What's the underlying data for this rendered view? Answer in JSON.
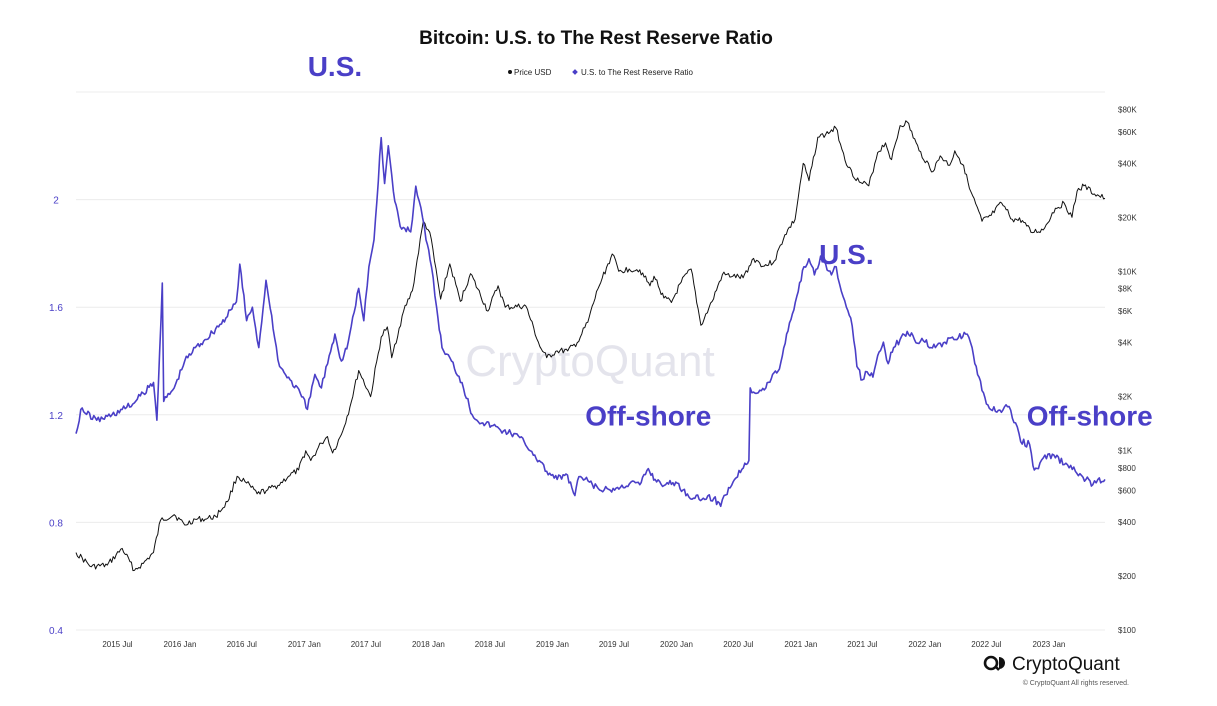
{
  "chart_data": {
    "type": "line",
    "title": "Bitcoin: U.S. to The Rest Reserve Ratio",
    "legend": [
      {
        "label": "Price USD",
        "color": "#111111"
      },
      {
        "label": "U.S. to The Rest Reserve Ratio",
        "color": "#4a3fc7"
      }
    ],
    "legend_position": "top-center",
    "grid": true,
    "x_range": [
      "2015-03-01",
      "2023-06-15"
    ],
    "x_ticks": [
      "2015 Jul",
      "2016 Jan",
      "2016 Jul",
      "2017 Jan",
      "2017 Jul",
      "2018 Jan",
      "2018 Jul",
      "2019 Jan",
      "2019 Jul",
      "2020 Jan",
      "2020 Jul",
      "2021 Jan",
      "2021 Jul",
      "2022 Jan",
      "2022 Jul",
      "2023 Jan"
    ],
    "y_left": {
      "scale": "linear",
      "range": [
        0.4,
        2.4
      ],
      "ticks": [
        "2",
        "1.6",
        "1.2",
        "0.8",
        "0.4"
      ]
    },
    "y_right": {
      "scale": "log",
      "range": [
        100,
        100000
      ],
      "ticks": [
        "$80K",
        "$60K",
        "$40K",
        "$20K",
        "$10K",
        "$8K",
        "$6K",
        "$4K",
        "$2K",
        "$1K",
        "$800",
        "$600",
        "$400",
        "$200",
        "$100"
      ]
    },
    "series": [
      {
        "name": "Price USD",
        "axis": "right",
        "color": "#111111",
        "points": [
          [
            "2015-03-01",
            270
          ],
          [
            "2015-04-15",
            225
          ],
          [
            "2015-06-01",
            230
          ],
          [
            "2015-07-15",
            285
          ],
          [
            "2015-08-20",
            215
          ],
          [
            "2015-09-15",
            235
          ],
          [
            "2015-10-15",
            270
          ],
          [
            "2015-11-05",
            410
          ],
          [
            "2015-12-15",
            440
          ],
          [
            "2016-01-15",
            385
          ],
          [
            "2016-02-15",
            415
          ],
          [
            "2016-03-15",
            415
          ],
          [
            "2016-04-15",
            430
          ],
          [
            "2016-05-20",
            520
          ],
          [
            "2016-06-17",
            720
          ],
          [
            "2016-07-15",
            660
          ],
          [
            "2016-08-15",
            575
          ],
          [
            "2016-09-15",
            605
          ],
          [
            "2016-10-15",
            640
          ],
          [
            "2016-11-15",
            720
          ],
          [
            "2016-12-15",
            780
          ],
          [
            "2017-01-05",
            1000
          ],
          [
            "2017-01-20",
            880
          ],
          [
            "2017-02-20",
            1100
          ],
          [
            "2017-03-10",
            1200
          ],
          [
            "2017-03-25",
            970
          ],
          [
            "2017-04-20",
            1230
          ],
          [
            "2017-05-15",
            1750
          ],
          [
            "2017-06-10",
            2800
          ],
          [
            "2017-07-15",
            2000
          ],
          [
            "2017-08-15",
            4300
          ],
          [
            "2017-09-02",
            4900
          ],
          [
            "2017-09-15",
            3300
          ],
          [
            "2017-10-20",
            6000
          ],
          [
            "2017-11-15",
            7800
          ],
          [
            "2017-12-17",
            19000
          ],
          [
            "2018-01-05",
            16500
          ],
          [
            "2018-02-06",
            7000
          ],
          [
            "2018-03-05",
            11000
          ],
          [
            "2018-04-05",
            6800
          ],
          [
            "2018-05-05",
            9700
          ],
          [
            "2018-06-25",
            6000
          ],
          [
            "2018-07-25",
            8300
          ],
          [
            "2018-08-15",
            6300
          ],
          [
            "2018-10-15",
            6400
          ],
          [
            "2018-11-25",
            3800
          ],
          [
            "2018-12-15",
            3300
          ],
          [
            "2019-01-15",
            3600
          ],
          [
            "2019-02-15",
            3600
          ],
          [
            "2019-03-15",
            4000
          ],
          [
            "2019-04-15",
            5200
          ],
          [
            "2019-05-15",
            8000
          ],
          [
            "2019-06-26",
            12500
          ],
          [
            "2019-07-15",
            10000
          ],
          [
            "2019-08-15",
            10300
          ],
          [
            "2019-09-15",
            10200
          ],
          [
            "2019-10-15",
            8300
          ],
          [
            "2019-10-27",
            9400
          ],
          [
            "2019-11-25",
            7100
          ],
          [
            "2019-12-17",
            6700
          ],
          [
            "2020-01-15",
            8700
          ],
          [
            "2020-02-13",
            10300
          ],
          [
            "2020-03-13",
            5000
          ],
          [
            "2020-04-15",
            6800
          ],
          [
            "2020-05-15",
            9600
          ],
          [
            "2020-06-15",
            9400
          ],
          [
            "2020-07-15",
            9200
          ],
          [
            "2020-08-15",
            11800
          ],
          [
            "2020-09-15",
            10700
          ],
          [
            "2020-10-15",
            11400
          ],
          [
            "2020-11-15",
            16000
          ],
          [
            "2020-12-15",
            19500
          ],
          [
            "2021-01-08",
            40000
          ],
          [
            "2021-01-25",
            32000
          ],
          [
            "2021-02-20",
            56000
          ],
          [
            "2021-03-15",
            58000
          ],
          [
            "2021-04-14",
            63000
          ],
          [
            "2021-05-20",
            38000
          ],
          [
            "2021-06-22",
            31500
          ],
          [
            "2021-07-20",
            30000
          ],
          [
            "2021-08-15",
            46000
          ],
          [
            "2021-09-07",
            52000
          ],
          [
            "2021-09-25",
            42000
          ],
          [
            "2021-10-20",
            65000
          ],
          [
            "2021-11-10",
            68000
          ],
          [
            "2021-12-15",
            47000
          ],
          [
            "2022-01-25",
            36000
          ],
          [
            "2022-02-15",
            44000
          ],
          [
            "2022-03-15",
            39000
          ],
          [
            "2022-03-30",
            47000
          ],
          [
            "2022-04-25",
            39000
          ],
          [
            "2022-05-12",
            29000
          ],
          [
            "2022-06-18",
            19000
          ],
          [
            "2022-07-15",
            20500
          ],
          [
            "2022-08-15",
            24000
          ],
          [
            "2022-09-15",
            19500
          ],
          [
            "2022-10-15",
            19200
          ],
          [
            "2022-11-09",
            16500
          ],
          [
            "2022-12-15",
            17000
          ],
          [
            "2023-01-20",
            22500
          ],
          [
            "2023-02-15",
            24000
          ],
          [
            "2023-03-10",
            20000
          ],
          [
            "2023-03-25",
            28000
          ],
          [
            "2023-04-14",
            30000
          ],
          [
            "2023-05-15",
            27000
          ],
          [
            "2023-06-15",
            25500
          ]
        ]
      },
      {
        "name": "U.S. to The Rest Reserve Ratio",
        "axis": "left",
        "color": "#4a3fc7",
        "points": [
          [
            "2015-03-01",
            1.13
          ],
          [
            "2015-03-15",
            1.22
          ],
          [
            "2015-05-01",
            1.18
          ],
          [
            "2015-06-15",
            1.2
          ],
          [
            "2015-07-15",
            1.22
          ],
          [
            "2015-08-15",
            1.24
          ],
          [
            "2015-09-15",
            1.28
          ],
          [
            "2015-10-15",
            1.32
          ],
          [
            "2015-10-25",
            1.18
          ],
          [
            "2015-11-10",
            1.69
          ],
          [
            "2015-11-14",
            1.25
          ],
          [
            "2015-12-15",
            1.3
          ],
          [
            "2016-01-15",
            1.4
          ],
          [
            "2016-02-15",
            1.45
          ],
          [
            "2016-03-15",
            1.48
          ],
          [
            "2016-04-15",
            1.52
          ],
          [
            "2016-05-15",
            1.56
          ],
          [
            "2016-06-15",
            1.62
          ],
          [
            "2016-06-25",
            1.76
          ],
          [
            "2016-07-15",
            1.55
          ],
          [
            "2016-08-01",
            1.6
          ],
          [
            "2016-08-20",
            1.45
          ],
          [
            "2016-09-10",
            1.7
          ],
          [
            "2016-10-01",
            1.52
          ],
          [
            "2016-10-20",
            1.38
          ],
          [
            "2016-11-20",
            1.33
          ],
          [
            "2016-12-20",
            1.28
          ],
          [
            "2017-01-10",
            1.22
          ],
          [
            "2017-02-01",
            1.35
          ],
          [
            "2017-02-20",
            1.3
          ],
          [
            "2017-03-15",
            1.42
          ],
          [
            "2017-04-01",
            1.5
          ],
          [
            "2017-04-20",
            1.4
          ],
          [
            "2017-05-10",
            1.47
          ],
          [
            "2017-06-10",
            1.67
          ],
          [
            "2017-06-25",
            1.55
          ],
          [
            "2017-07-10",
            1.75
          ],
          [
            "2017-07-25",
            1.85
          ],
          [
            "2017-08-15",
            2.23
          ],
          [
            "2017-08-25",
            2.06
          ],
          [
            "2017-09-05",
            2.2
          ],
          [
            "2017-09-20",
            2.03
          ],
          [
            "2017-10-10",
            1.9
          ],
          [
            "2017-11-10",
            1.88
          ],
          [
            "2017-11-25",
            2.05
          ],
          [
            "2017-12-10",
            1.97
          ],
          [
            "2017-12-25",
            1.85
          ],
          [
            "2018-01-10",
            1.75
          ],
          [
            "2018-01-25",
            1.6
          ],
          [
            "2018-02-10",
            1.45
          ],
          [
            "2018-03-10",
            1.4
          ],
          [
            "2018-04-10",
            1.32
          ],
          [
            "2018-05-10",
            1.2
          ],
          [
            "2018-06-10",
            1.17
          ],
          [
            "2018-07-10",
            1.16
          ],
          [
            "2018-08-10",
            1.14
          ],
          [
            "2018-09-10",
            1.13
          ],
          [
            "2018-10-10",
            1.1
          ],
          [
            "2018-11-10",
            1.05
          ],
          [
            "2018-12-15",
            0.99
          ],
          [
            "2019-01-15",
            0.96
          ],
          [
            "2019-02-10",
            0.98
          ],
          [
            "2019-03-08",
            0.9
          ],
          [
            "2019-03-20",
            0.97
          ],
          [
            "2019-04-20",
            0.95
          ],
          [
            "2019-05-20",
            0.92
          ],
          [
            "2019-06-20",
            0.92
          ],
          [
            "2019-07-20",
            0.93
          ],
          [
            "2019-08-20",
            0.95
          ],
          [
            "2019-09-15",
            0.94
          ],
          [
            "2019-10-10",
            1.0
          ],
          [
            "2019-10-30",
            0.96
          ],
          [
            "2019-11-30",
            0.94
          ],
          [
            "2019-12-30",
            0.95
          ],
          [
            "2020-01-20",
            0.92
          ],
          [
            "2020-02-20",
            0.89
          ],
          [
            "2020-03-20",
            0.89
          ],
          [
            "2020-04-20",
            0.89
          ],
          [
            "2020-05-10",
            0.86
          ],
          [
            "2020-05-20",
            0.9
          ],
          [
            "2020-06-20",
            0.96
          ],
          [
            "2020-07-20",
            1.02
          ],
          [
            "2020-08-01",
            1.03
          ],
          [
            "2020-08-05",
            1.3
          ],
          [
            "2020-08-20",
            1.28
          ],
          [
            "2020-09-20",
            1.3
          ],
          [
            "2020-10-10",
            1.35
          ],
          [
            "2020-10-30",
            1.37
          ],
          [
            "2020-11-20",
            1.5
          ],
          [
            "2020-12-20",
            1.64
          ],
          [
            "2021-01-10",
            1.75
          ],
          [
            "2021-01-25",
            1.78
          ],
          [
            "2021-02-10",
            1.72
          ],
          [
            "2021-02-28",
            1.79
          ],
          [
            "2021-03-15",
            1.76
          ],
          [
            "2021-04-01",
            1.72
          ],
          [
            "2021-04-15",
            1.75
          ],
          [
            "2021-04-30",
            1.66
          ],
          [
            "2021-05-15",
            1.6
          ],
          [
            "2021-06-01",
            1.53
          ],
          [
            "2021-06-15",
            1.38
          ],
          [
            "2021-07-01",
            1.33
          ],
          [
            "2021-07-15",
            1.36
          ],
          [
            "2021-08-01",
            1.34
          ],
          [
            "2021-08-15",
            1.42
          ],
          [
            "2021-09-01",
            1.47
          ],
          [
            "2021-09-15",
            1.39
          ],
          [
            "2021-10-01",
            1.45
          ],
          [
            "2021-10-20",
            1.48
          ],
          [
            "2021-11-10",
            1.51
          ],
          [
            "2021-12-01",
            1.48
          ],
          [
            "2022-01-01",
            1.47
          ],
          [
            "2022-02-01",
            1.45
          ],
          [
            "2022-03-01",
            1.47
          ],
          [
            "2022-04-01",
            1.48
          ],
          [
            "2022-05-01",
            1.5
          ],
          [
            "2022-05-20",
            1.45
          ],
          [
            "2022-06-01",
            1.38
          ],
          [
            "2022-06-18",
            1.29
          ],
          [
            "2022-07-01",
            1.24
          ],
          [
            "2022-08-01",
            1.21
          ],
          [
            "2022-09-01",
            1.23
          ],
          [
            "2022-09-25",
            1.17
          ],
          [
            "2022-10-10",
            1.1
          ],
          [
            "2022-11-05",
            1.09
          ],
          [
            "2022-11-15",
            1.01
          ],
          [
            "2022-12-01",
            1.0
          ],
          [
            "2022-12-20",
            1.05
          ],
          [
            "2023-01-20",
            1.04
          ],
          [
            "2023-02-20",
            1.02
          ],
          [
            "2023-03-20",
            0.99
          ],
          [
            "2023-04-20",
            0.96
          ],
          [
            "2023-05-10",
            0.94
          ],
          [
            "2023-05-25",
            0.96
          ],
          [
            "2023-06-15",
            0.96
          ]
        ]
      }
    ],
    "annotations": [
      {
        "text": "U.S.",
        "date": "2017-04-01",
        "value": 2.46
      },
      {
        "text": "U.S.",
        "date": "2021-05-15",
        "value": 1.76
      },
      {
        "text": "Off-shore",
        "date": "2019-10-10",
        "value": 1.16
      },
      {
        "text": "Off-shore",
        "date": "2023-05-01",
        "value": 1.16
      }
    ]
  },
  "watermark": "CryptoQuant",
  "footer": {
    "brand": "CryptoQuant",
    "copyright": "© CryptoQuant All rights reserved."
  }
}
